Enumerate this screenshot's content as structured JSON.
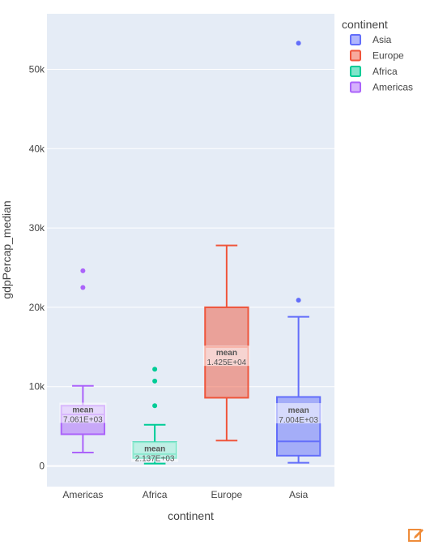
{
  "chart_data": {
    "type": "box",
    "xlabel": "continent",
    "ylabel": "gdpPercap_median",
    "categories": [
      "Americas",
      "Africa",
      "Europe",
      "Asia"
    ],
    "ylim": [
      -2600,
      57000
    ],
    "yticks": [
      0,
      10000,
      20000,
      30000,
      40000,
      50000
    ],
    "ytick_labels": [
      "0",
      "10k",
      "20k",
      "30k",
      "40k",
      "50k"
    ],
    "grid": true,
    "legend": {
      "title": "continent",
      "position": "top-right"
    },
    "series": [
      {
        "name": "Asia",
        "category": "Asia",
        "color": "#636efa",
        "q1": 1300,
        "median": 3100,
        "q3": 8700,
        "whisker_low": 400,
        "whisker_high": 18800,
        "mean": 7004,
        "mean_label": "7.004E+03",
        "outliers": [
          20900,
          53300
        ]
      },
      {
        "name": "Europe",
        "category": "Europe",
        "color": "#ef553b",
        "q1": 8600,
        "median": 15000,
        "q3": 20000,
        "whisker_low": 3200,
        "whisker_high": 27800,
        "mean": 14250,
        "mean_label": "1.425E+04",
        "outliers": []
      },
      {
        "name": "Africa",
        "category": "Africa",
        "color": "#00cc96",
        "q1": 1000,
        "median": 1500,
        "q3": 3000,
        "whisker_low": 300,
        "whisker_high": 5200,
        "mean": 2137,
        "mean_label": "2.137E+03",
        "outliers": [
          7600,
          10700,
          12200
        ]
      },
      {
        "name": "Americas",
        "category": "Americas",
        "color": "#ab63fa",
        "q1": 4000,
        "median": 6500,
        "q3": 7600,
        "whisker_low": 1700,
        "whisker_high": 10100,
        "mean": 7061,
        "mean_label": "7.061E+03",
        "outliers": [
          22500,
          24600
        ]
      }
    ],
    "annotation_title": "mean"
  },
  "legend_order": [
    "Asia",
    "Europe",
    "Africa",
    "Americas"
  ],
  "icons": {
    "edit": "edit-icon"
  }
}
